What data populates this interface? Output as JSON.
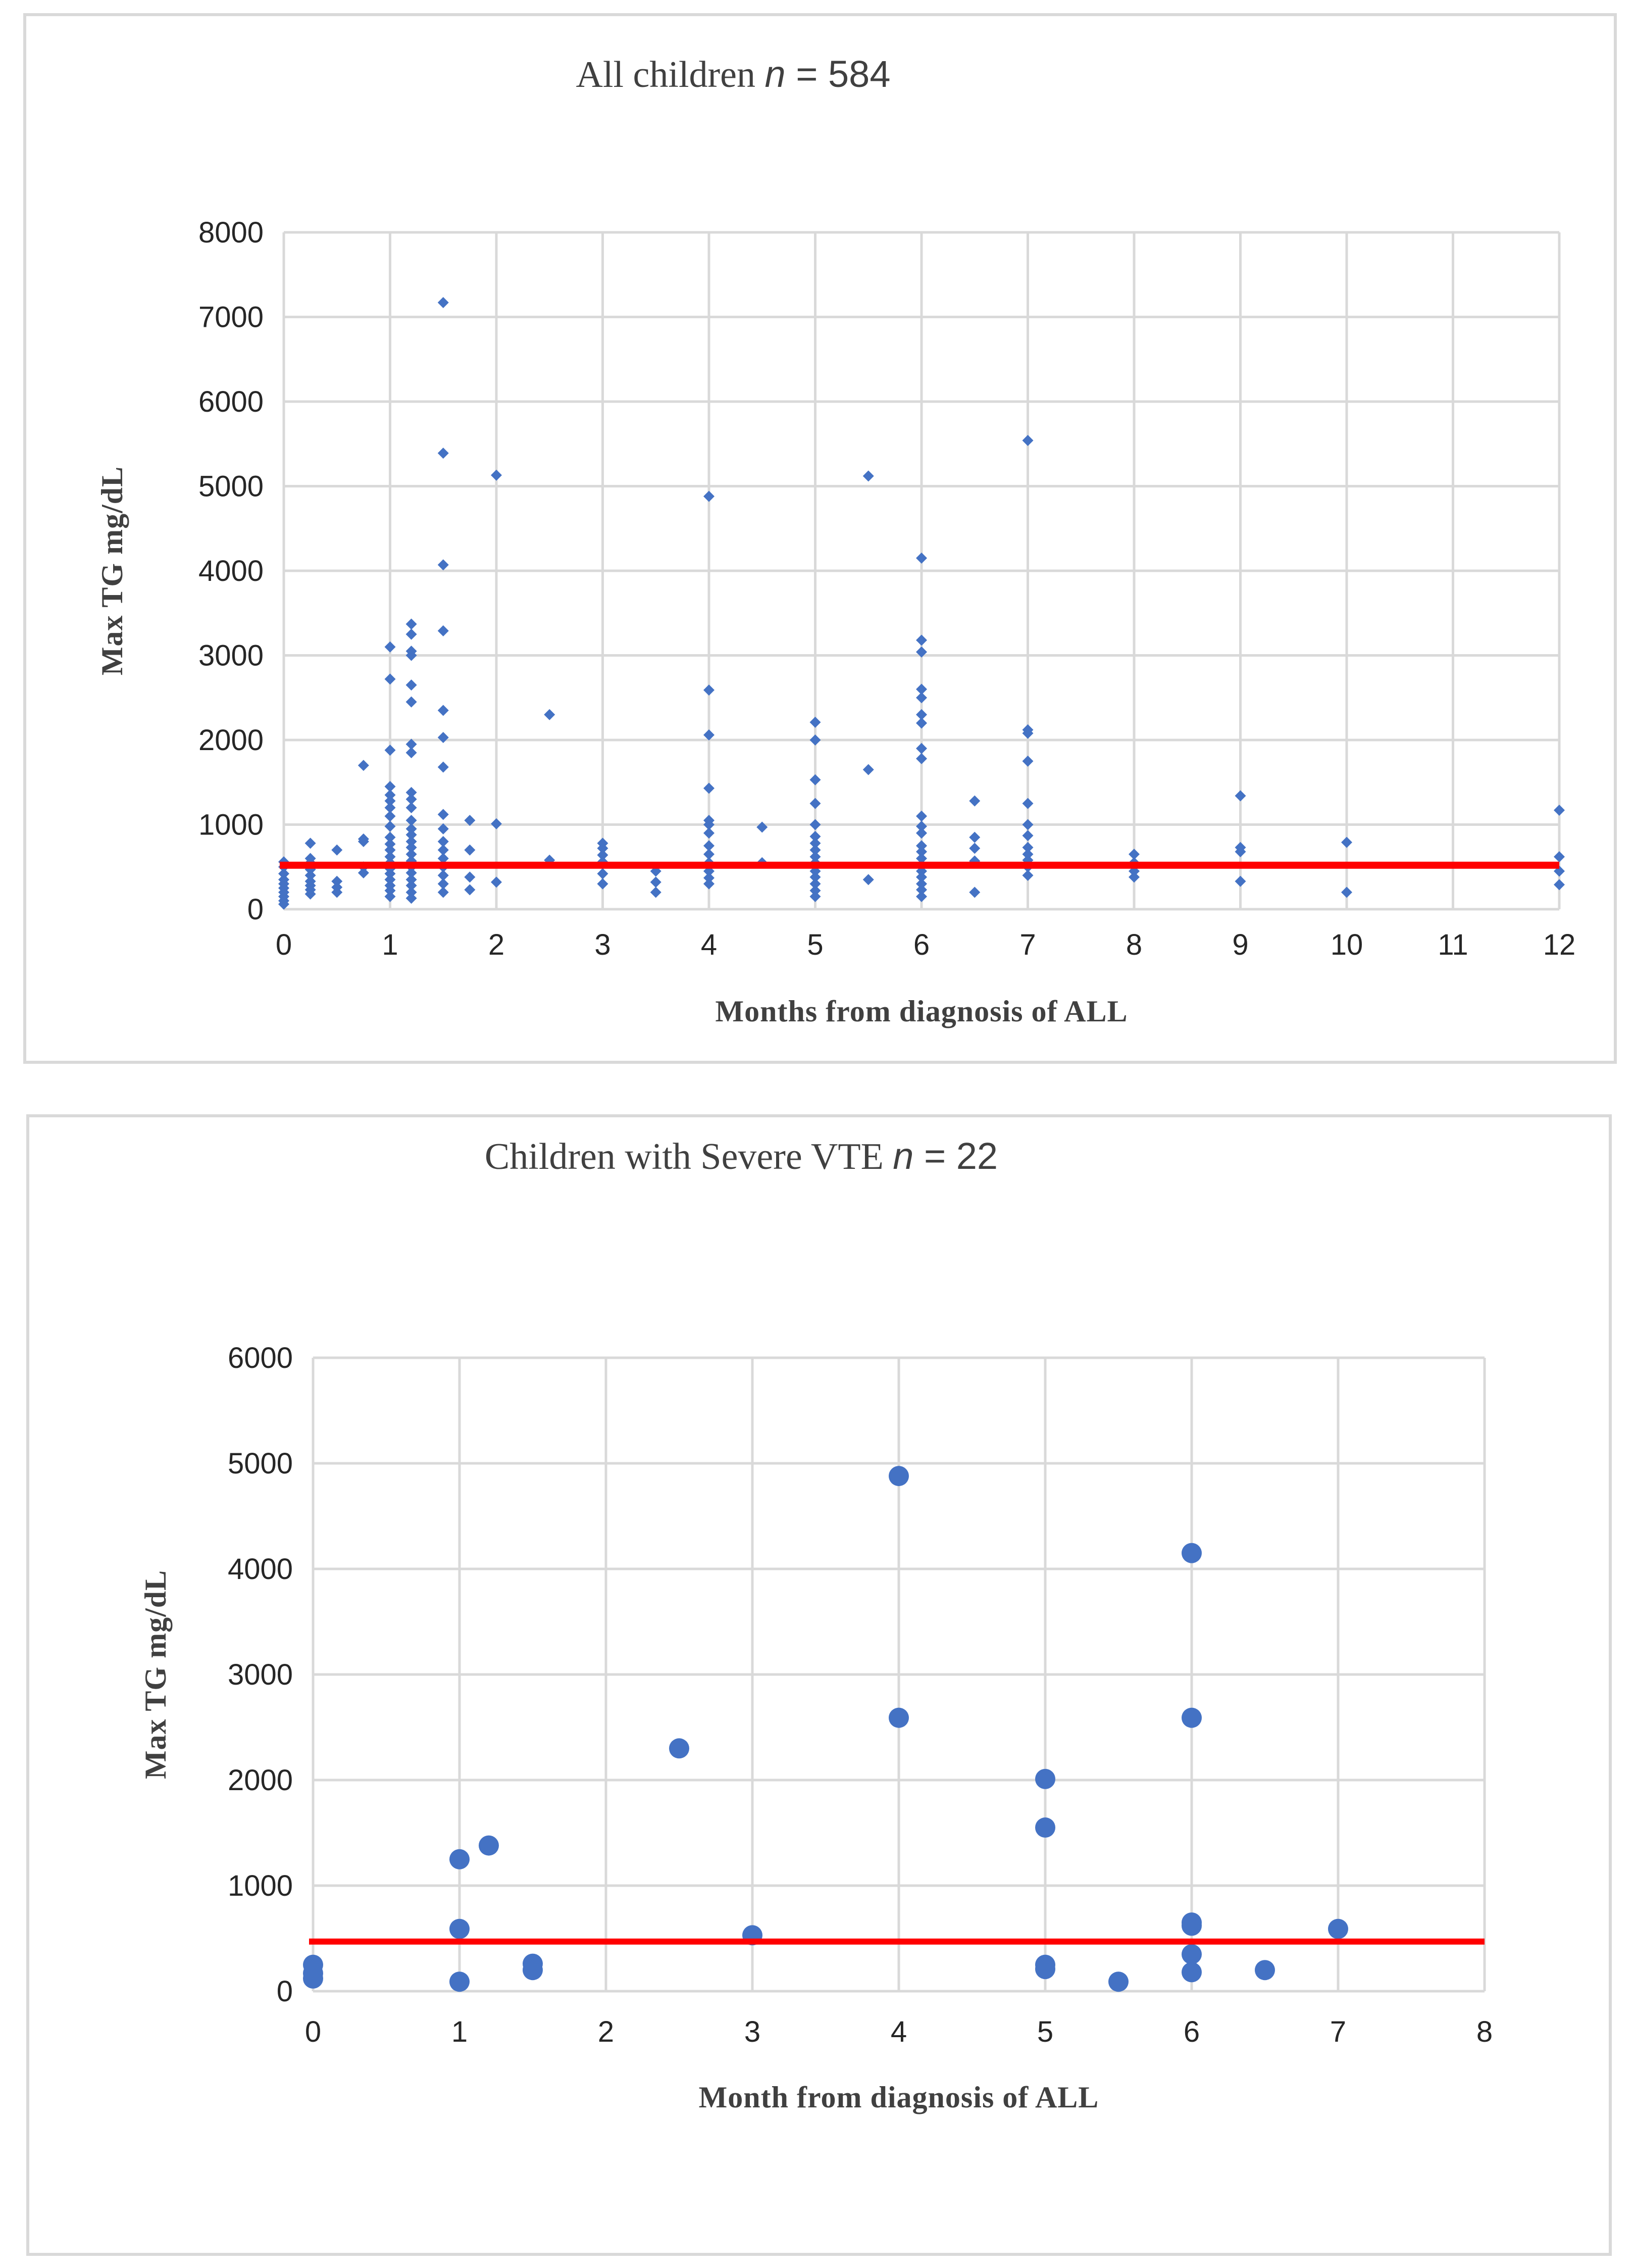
{
  "chart_data": [
    {
      "type": "scatter",
      "title": "All children",
      "n_label": "n",
      "n_value": "= 584",
      "xlabel": "Months from diagnosis of ALL",
      "ylabel": "Max TG  mg/dL",
      "xlim": [
        0,
        12
      ],
      "ylim": [
        0,
        8000
      ],
      "xticks": [
        0,
        1,
        2,
        3,
        4,
        5,
        6,
        7,
        8,
        9,
        10,
        11,
        12
      ],
      "yticks": [
        0,
        1000,
        2000,
        3000,
        4000,
        5000,
        6000,
        7000,
        8000
      ],
      "grid": true,
      "reference_line": {
        "y": 520,
        "color": "#ff0000"
      },
      "marker_color": "#4472c4",
      "marker": "diamond",
      "points": [
        [
          0,
          60
        ],
        [
          0,
          100
        ],
        [
          0,
          150
        ],
        [
          0,
          200
        ],
        [
          0,
          250
        ],
        [
          0,
          300
        ],
        [
          0,
          350
        ],
        [
          0,
          420
        ],
        [
          0,
          500
        ],
        [
          0,
          560
        ],
        [
          0.25,
          180
        ],
        [
          0.25,
          230
        ],
        [
          0.25,
          280
        ],
        [
          0.25,
          330
        ],
        [
          0.25,
          400
        ],
        [
          0.25,
          470
        ],
        [
          0.25,
          550
        ],
        [
          0.25,
          600
        ],
        [
          0.25,
          780
        ],
        [
          0.5,
          200
        ],
        [
          0.5,
          260
        ],
        [
          0.5,
          330
        ],
        [
          0.5,
          700
        ],
        [
          0.75,
          430
        ],
        [
          0.75,
          500
        ],
        [
          0.75,
          800
        ],
        [
          0.75,
          830
        ],
        [
          0.75,
          1700
        ],
        [
          1,
          150
        ],
        [
          1,
          220
        ],
        [
          1,
          280
        ],
        [
          1,
          350
        ],
        [
          1,
          420
        ],
        [
          1,
          480
        ],
        [
          1,
          550
        ],
        [
          1,
          620
        ],
        [
          1,
          700
        ],
        [
          1,
          770
        ],
        [
          1,
          850
        ],
        [
          1,
          980
        ],
        [
          1,
          1100
        ],
        [
          1,
          1200
        ],
        [
          1,
          1280
        ],
        [
          1,
          1350
        ],
        [
          1,
          1450
        ],
        [
          1,
          1880
        ],
        [
          1,
          2720
        ],
        [
          1,
          3100
        ],
        [
          1.2,
          130
        ],
        [
          1.2,
          200
        ],
        [
          1.2,
          280
        ],
        [
          1.2,
          350
        ],
        [
          1.2,
          430
        ],
        [
          1.2,
          500
        ],
        [
          1.2,
          570
        ],
        [
          1.2,
          650
        ],
        [
          1.2,
          730
        ],
        [
          1.2,
          800
        ],
        [
          1.2,
          880
        ],
        [
          1.2,
          950
        ],
        [
          1.2,
          1050
        ],
        [
          1.2,
          1200
        ],
        [
          1.2,
          1300
        ],
        [
          1.2,
          1380
        ],
        [
          1.2,
          1850
        ],
        [
          1.2,
          1950
        ],
        [
          1.2,
          2450
        ],
        [
          1.2,
          2650
        ],
        [
          1.2,
          3000
        ],
        [
          1.2,
          3050
        ],
        [
          1.2,
          3250
        ],
        [
          1.2,
          3370
        ],
        [
          1.5,
          200
        ],
        [
          1.5,
          300
        ],
        [
          1.5,
          400
        ],
        [
          1.5,
          500
        ],
        [
          1.5,
          600
        ],
        [
          1.5,
          700
        ],
        [
          1.5,
          800
        ],
        [
          1.5,
          950
        ],
        [
          1.5,
          1120
        ],
        [
          1.5,
          1680
        ],
        [
          1.5,
          2030
        ],
        [
          1.5,
          2350
        ],
        [
          1.5,
          3290
        ],
        [
          1.5,
          4070
        ],
        [
          1.5,
          5390
        ],
        [
          1.5,
          7170
        ],
        [
          1.75,
          230
        ],
        [
          1.75,
          380
        ],
        [
          1.75,
          700
        ],
        [
          1.75,
          1050
        ],
        [
          2,
          320
        ],
        [
          2,
          1010
        ],
        [
          2,
          5130
        ],
        [
          2.5,
          580
        ],
        [
          2.5,
          2300
        ],
        [
          3,
          300
        ],
        [
          3,
          420
        ],
        [
          3,
          560
        ],
        [
          3,
          640
        ],
        [
          3,
          720
        ],
        [
          3,
          780
        ],
        [
          3.5,
          200
        ],
        [
          3.5,
          320
        ],
        [
          3.5,
          450
        ],
        [
          4,
          300
        ],
        [
          4,
          370
        ],
        [
          4,
          450
        ],
        [
          4,
          550
        ],
        [
          4,
          650
        ],
        [
          4,
          750
        ],
        [
          4,
          900
        ],
        [
          4,
          1000
        ],
        [
          4,
          1050
        ],
        [
          4,
          1430
        ],
        [
          4,
          2060
        ],
        [
          4,
          2590
        ],
        [
          4,
          4880
        ],
        [
          4.5,
          550
        ],
        [
          4.5,
          970
        ],
        [
          5,
          150
        ],
        [
          5,
          220
        ],
        [
          5,
          300
        ],
        [
          5,
          380
        ],
        [
          5,
          450
        ],
        [
          5,
          550
        ],
        [
          5,
          620
        ],
        [
          5,
          700
        ],
        [
          5,
          780
        ],
        [
          5,
          860
        ],
        [
          5,
          1000
        ],
        [
          5,
          1250
        ],
        [
          5,
          1530
        ],
        [
          5,
          2000
        ],
        [
          5,
          2210
        ],
        [
          5.5,
          350
        ],
        [
          5.5,
          1650
        ],
        [
          5.5,
          5120
        ],
        [
          6,
          150
        ],
        [
          6,
          230
        ],
        [
          6,
          300
        ],
        [
          6,
          380
        ],
        [
          6,
          450
        ],
        [
          6,
          530
        ],
        [
          6,
          600
        ],
        [
          6,
          680
        ],
        [
          6,
          750
        ],
        [
          6,
          900
        ],
        [
          6,
          980
        ],
        [
          6,
          1100
        ],
        [
          6,
          1780
        ],
        [
          6,
          1900
        ],
        [
          6,
          2200
        ],
        [
          6,
          2300
        ],
        [
          6,
          2500
        ],
        [
          6,
          2600
        ],
        [
          6,
          3040
        ],
        [
          6,
          3180
        ],
        [
          6,
          4150
        ],
        [
          6.5,
          200
        ],
        [
          6.5,
          570
        ],
        [
          6.5,
          720
        ],
        [
          6.5,
          850
        ],
        [
          6.5,
          1280
        ],
        [
          7,
          400
        ],
        [
          7,
          500
        ],
        [
          7,
          580
        ],
        [
          7,
          650
        ],
        [
          7,
          730
        ],
        [
          7,
          870
        ],
        [
          7,
          1000
        ],
        [
          7,
          1250
        ],
        [
          7,
          1750
        ],
        [
          7,
          2080
        ],
        [
          7,
          2120
        ],
        [
          7,
          5540
        ],
        [
          8,
          380
        ],
        [
          8,
          450
        ],
        [
          8,
          550
        ],
        [
          8,
          650
        ],
        [
          9,
          330
        ],
        [
          9,
          680
        ],
        [
          9,
          730
        ],
        [
          9,
          1340
        ],
        [
          10,
          200
        ],
        [
          10,
          790
        ],
        [
          12,
          290
        ],
        [
          12,
          450
        ],
        [
          12,
          620
        ],
        [
          12,
          1170
        ]
      ]
    },
    {
      "type": "scatter",
      "title": "Children with Severe VTE",
      "n_label": "n",
      "n_value": "= 22",
      "xlabel": "Month from diagnosis of ALL",
      "ylabel": "Max TG mg/dL",
      "xlim": [
        0,
        8
      ],
      "ylim": [
        0,
        6000
      ],
      "xticks": [
        0,
        1,
        2,
        3,
        4,
        5,
        6,
        7,
        8
      ],
      "yticks": [
        0,
        1000,
        2000,
        3000,
        4000,
        5000,
        6000
      ],
      "grid": true,
      "reference_line": {
        "y": 470,
        "color": "#ff0000"
      },
      "marker_color": "#4472c4",
      "marker": "circle",
      "points": [
        [
          0,
          120
        ],
        [
          0,
          170
        ],
        [
          0,
          250
        ],
        [
          1,
          90
        ],
        [
          1,
          590
        ],
        [
          1,
          1250
        ],
        [
          1.2,
          1380
        ],
        [
          1.5,
          200
        ],
        [
          1.5,
          260
        ],
        [
          2.5,
          2300
        ],
        [
          3,
          530
        ],
        [
          4,
          2590
        ],
        [
          4,
          4880
        ],
        [
          5,
          210
        ],
        [
          5,
          250
        ],
        [
          5,
          1550
        ],
        [
          5,
          2010
        ],
        [
          5.5,
          90
        ],
        [
          6,
          180
        ],
        [
          6,
          350
        ],
        [
          6,
          620
        ],
        [
          6,
          650
        ],
        [
          6,
          2590
        ],
        [
          6,
          4150
        ],
        [
          6.5,
          200
        ],
        [
          7,
          590
        ]
      ]
    }
  ]
}
